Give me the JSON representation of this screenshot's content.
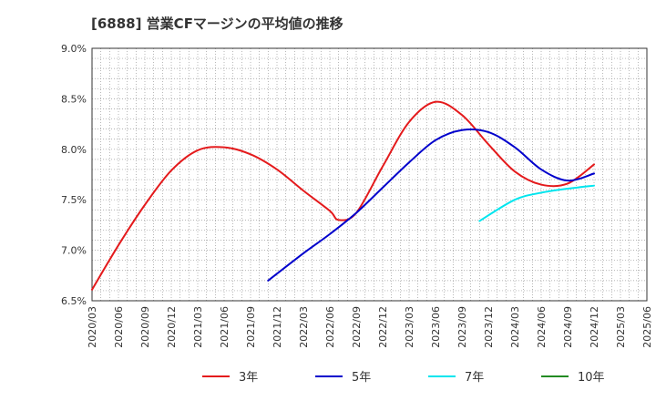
{
  "chart_data": {
    "type": "line",
    "title": "[6888]  営業CFマージンの平均値の推移",
    "xlabel": "",
    "ylabel": "",
    "ylim": [
      6.5,
      9.0
    ],
    "y_ticks": [
      "6.5%",
      "7.0%",
      "7.5%",
      "8.0%",
      "8.5%",
      "9.0%"
    ],
    "x_ticks": [
      "2020/03",
      "2020/06",
      "2020/09",
      "2020/12",
      "2021/03",
      "2021/06",
      "2021/09",
      "2021/12",
      "2022/03",
      "2022/06",
      "2022/09",
      "2022/12",
      "2023/03",
      "2023/06",
      "2023/09",
      "2023/12",
      "2024/03",
      "2024/06",
      "2024/09",
      "2024/12",
      "2025/03",
      "2025/06"
    ],
    "grid": true,
    "legend_position": "bottom",
    "series": [
      {
        "name": "3年",
        "color": "#e41a1c",
        "x": [
          "2020/03",
          "2020/06",
          "2020/09",
          "2020/12",
          "2021/03",
          "2021/06",
          "2021/09",
          "2021/12",
          "2022/03",
          "2022/06",
          "2022/07",
          "2022/09",
          "2022/12",
          "2023/03",
          "2023/06",
          "2023/09",
          "2023/12",
          "2024/03",
          "2024/06",
          "2024/09",
          "2024/12"
        ],
        "values": [
          6.61,
          7.05,
          7.45,
          7.79,
          7.99,
          8.02,
          7.95,
          7.8,
          7.59,
          7.39,
          7.3,
          7.37,
          7.83,
          8.27,
          8.47,
          8.34,
          8.05,
          7.78,
          7.65,
          7.66,
          7.85
        ]
      },
      {
        "name": "5年",
        "color": "#0000cc",
        "x": [
          "2021/11",
          "2022/03",
          "2022/06",
          "2022/09",
          "2022/12",
          "2023/03",
          "2023/06",
          "2023/09",
          "2023/12",
          "2024/03",
          "2024/06",
          "2024/09",
          "2024/12"
        ],
        "values": [
          6.7,
          6.97,
          7.16,
          7.37,
          7.62,
          7.87,
          8.09,
          8.19,
          8.17,
          8.02,
          7.8,
          7.69,
          7.76
        ]
      },
      {
        "name": "7年",
        "color": "#00e5ee",
        "x": [
          "2023/11",
          "2024/03",
          "2024/06",
          "2024/09",
          "2024/12"
        ],
        "values": [
          7.29,
          7.5,
          7.57,
          7.61,
          7.64
        ]
      },
      {
        "name": "10年",
        "color": "#228b22",
        "x": [],
        "values": []
      }
    ]
  }
}
